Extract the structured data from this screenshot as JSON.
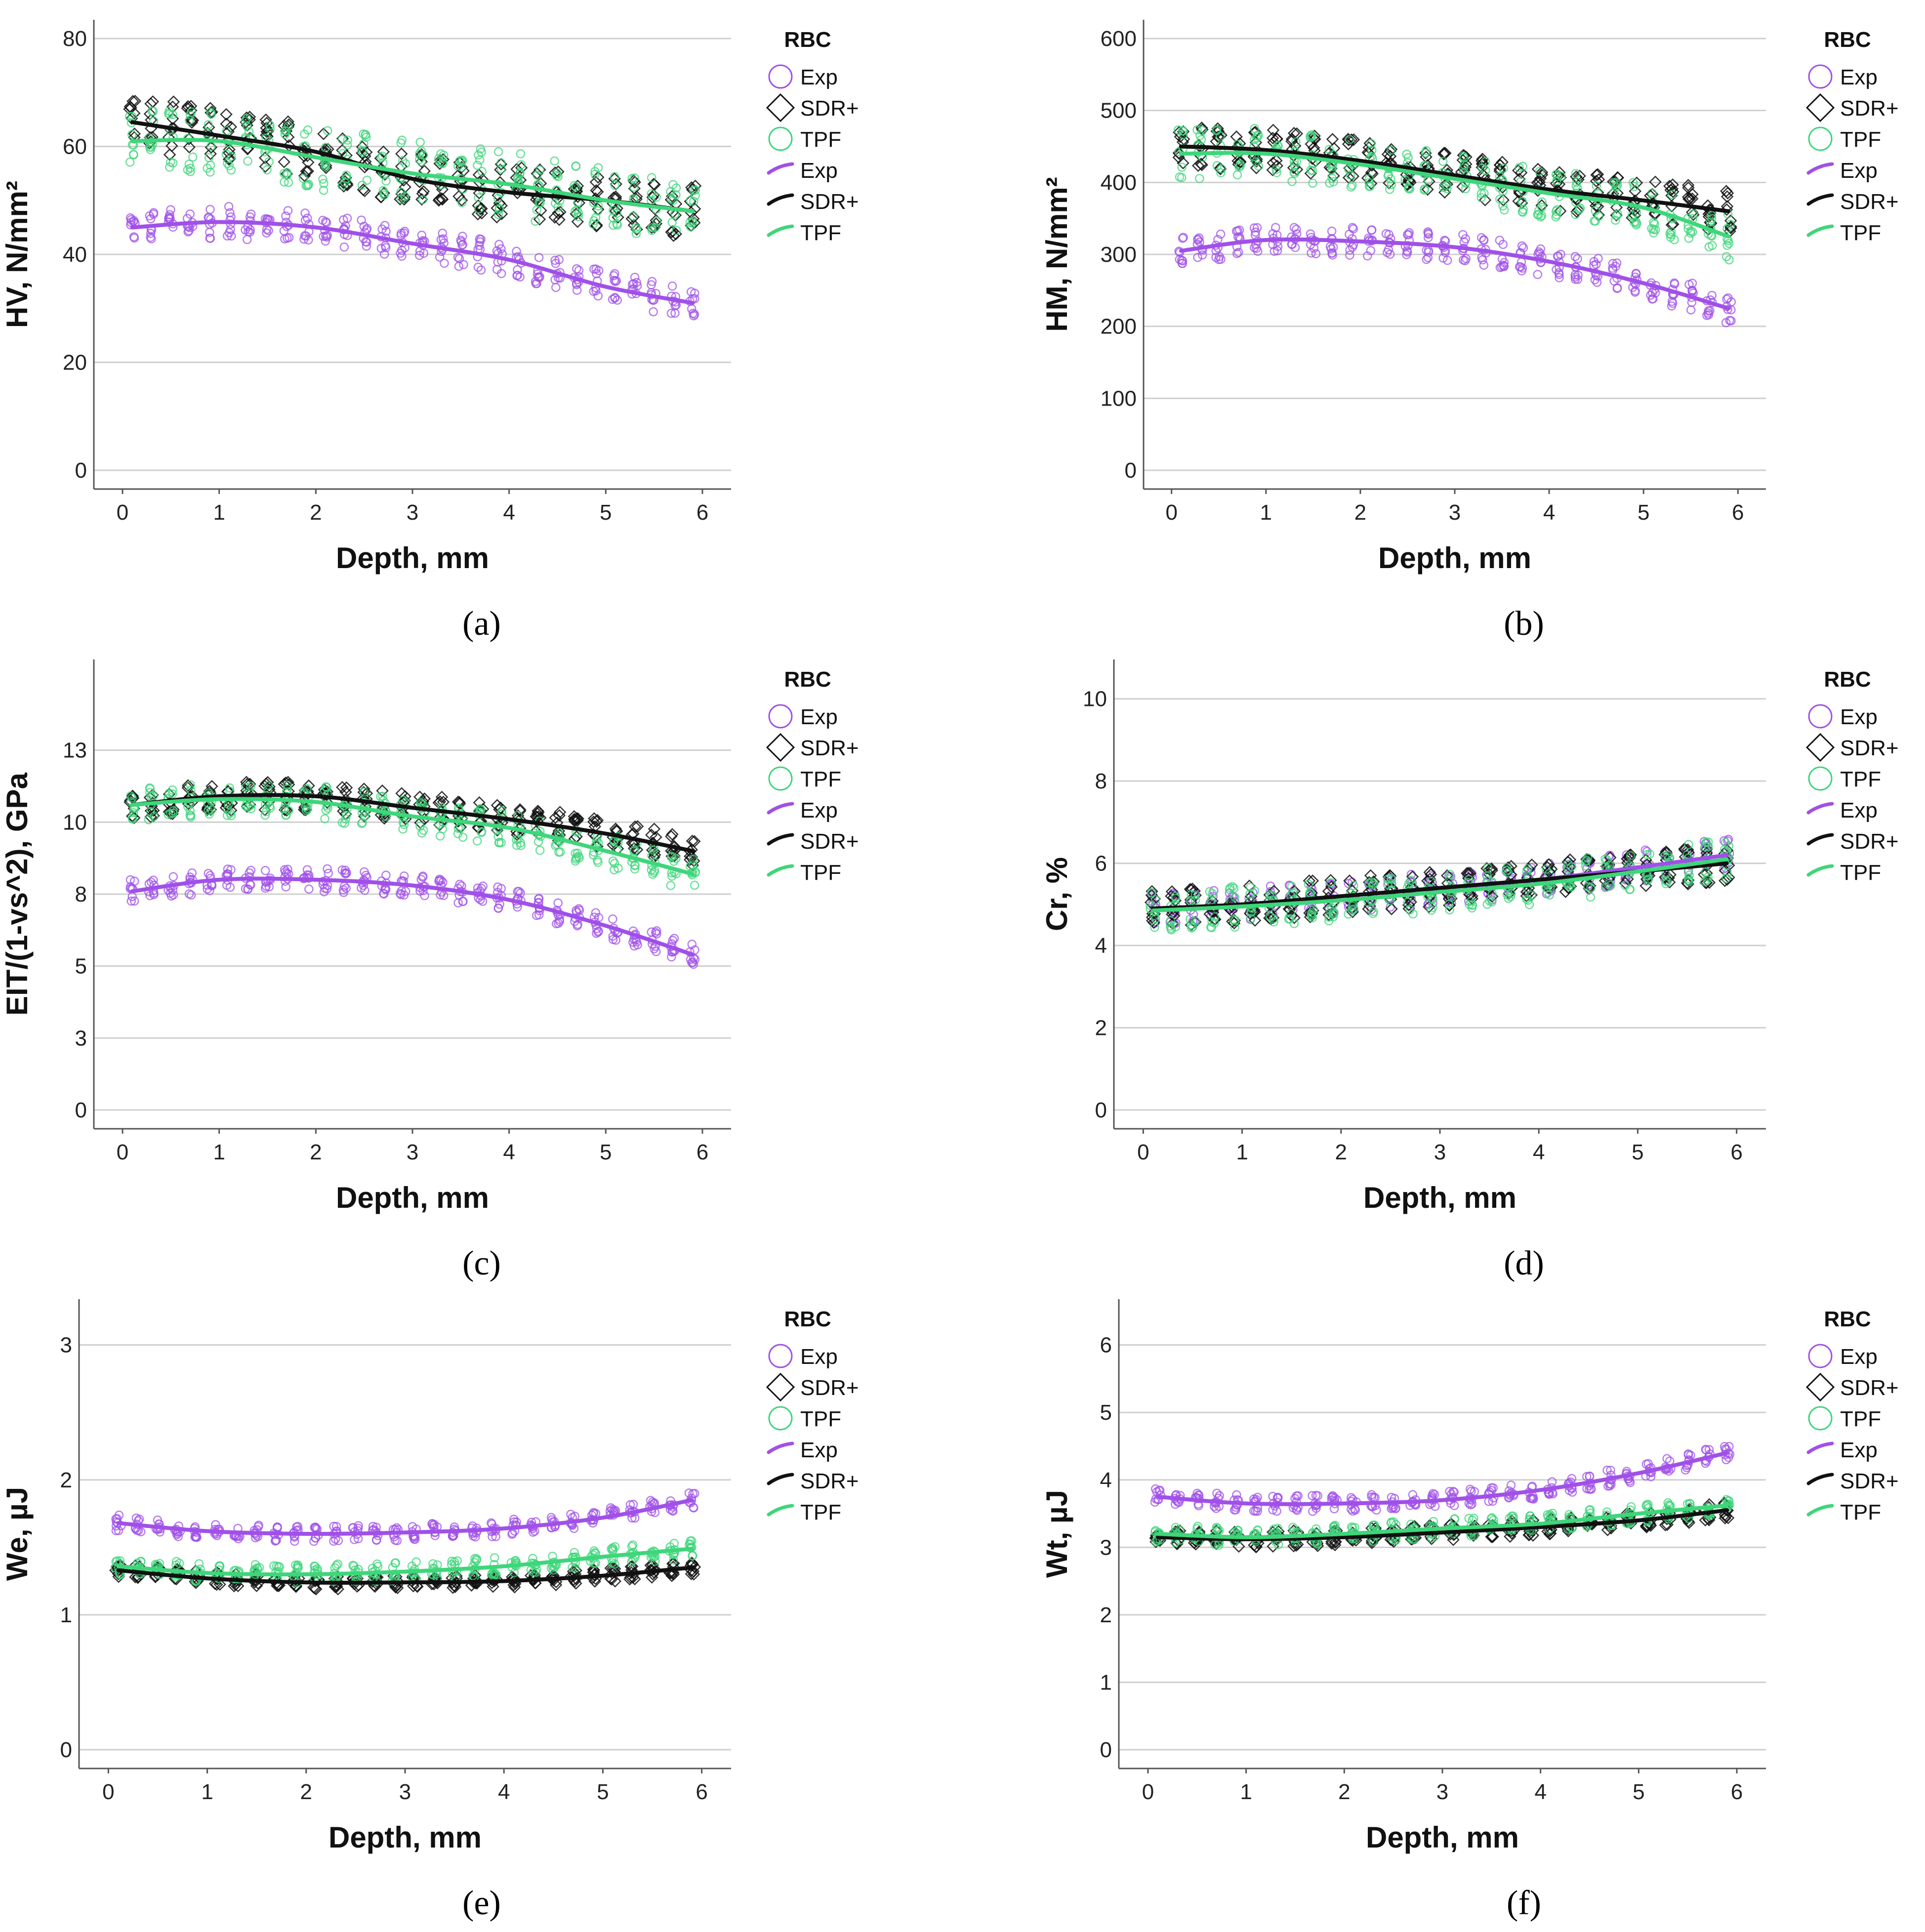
{
  "figure": {
    "legend_title": "RBC",
    "x_label": "Depth, mm",
    "colors": {
      "Exp": "#a050e8",
      "SDR+": "#111111",
      "TPF": "#3ed67a"
    }
  },
  "chart_data": [
    {
      "type": "scatter",
      "panel": "(a)",
      "ylabel": "HV, N/mm²",
      "xlabel": "Depth, mm",
      "xlim": [
        0,
        6
      ],
      "ylim": [
        0,
        80
      ],
      "xticks": [
        "0",
        "1",
        "2",
        "3",
        "4",
        "5",
        "6"
      ],
      "yticks": [
        "0",
        "20",
        "40",
        "60",
        "80"
      ],
      "legend": {
        "title": "RBC",
        "markers": [
          {
            "label": "Exp",
            "symbol": "circle"
          },
          {
            "label": "SDR+",
            "symbol": "diamond"
          },
          {
            "label": "TPF",
            "symbol": "circle"
          }
        ],
        "lines": [
          {
            "label": "Exp"
          },
          {
            "label": "SDR+"
          },
          {
            "label": "TPF"
          }
        ]
      },
      "series": [
        {
          "name": "Exp",
          "symbol": "circle",
          "fit": {
            "x": [
              0.1,
              1,
              2,
              3,
              4,
              5,
              5.9
            ],
            "y": [
              45,
              46,
              45,
              42,
              39,
              34,
              31
            ]
          },
          "spread": 3
        },
        {
          "name": "SDR+",
          "symbol": "diamond",
          "fit": {
            "x": [
              0.1,
              1,
              2,
              3,
              4,
              5,
              5.9
            ],
            "y": [
              64.5,
              62,
              59,
              54,
              51.5,
              50,
              48
            ]
          },
          "spread": 5
        },
        {
          "name": "TPF",
          "symbol": "circle",
          "fit": {
            "x": [
              0.1,
              1,
              2,
              3,
              4,
              5,
              5.9
            ],
            "y": [
              61,
              61,
              58,
              55,
              53,
              50,
              48
            ]
          },
          "spread": 6
        }
      ]
    },
    {
      "type": "scatter",
      "panel": "(b)",
      "ylabel": "HM, N/mm²",
      "xlabel": "Depth, mm",
      "xlim": [
        0,
        6
      ],
      "ylim": [
        0,
        600
      ],
      "xticks": [
        "0",
        "1",
        "2",
        "3",
        "4",
        "5",
        "6"
      ],
      "yticks": [
        "0",
        "100",
        "200",
        "300",
        "400",
        "500",
        "600"
      ],
      "legend": {
        "title": "RBC",
        "markers": [
          {
            "label": "Exp",
            "symbol": "circle"
          },
          {
            "label": "SDR+",
            "symbol": "diamond"
          },
          {
            "label": "TPF",
            "symbol": "circle"
          }
        ],
        "lines": [
          {
            "label": "Exp"
          },
          {
            "label": "SDR+"
          },
          {
            "label": "TPF"
          }
        ]
      },
      "series": [
        {
          "name": "Exp",
          "symbol": "circle",
          "fit": {
            "x": [
              0.1,
              1,
              2,
              3,
              4,
              5,
              5.9
            ],
            "y": [
              305,
              320,
              318,
              310,
              290,
              260,
              225
            ]
          },
          "spread": 20
        },
        {
          "name": "SDR+",
          "symbol": "diamond",
          "fit": {
            "x": [
              0.1,
              1,
              2,
              3,
              4,
              5,
              5.9
            ],
            "y": [
              450,
              445,
              430,
              410,
              390,
              375,
              360
            ]
          },
          "spread": 30
        },
        {
          "name": "TPF",
          "symbol": "circle",
          "fit": {
            "x": [
              0.1,
              1,
              2,
              3,
              4,
              5,
              5.9
            ],
            "y": [
              440,
              440,
              425,
              405,
              385,
              365,
              325
            ]
          },
          "spread": 35
        }
      ]
    },
    {
      "type": "scatter",
      "panel": "(c)",
      "ylabel": "EIT/(1-vs^2), GPa",
      "xlabel": "Depth, mm",
      "xlim": [
        0,
        6
      ],
      "ylim": [
        0,
        15
      ],
      "xticks": [
        "0",
        "1",
        "2",
        "3",
        "4",
        "5",
        "6"
      ],
      "yticks": [
        "0",
        "3",
        "5",
        "8",
        "10",
        "13"
      ],
      "ytick_values": [
        0,
        2.5,
        5,
        7.5,
        10,
        12.5
      ],
      "legend": {
        "title": "RBC",
        "markers": [
          {
            "label": "Exp",
            "symbol": "circle"
          },
          {
            "label": "SDR+",
            "symbol": "diamond"
          },
          {
            "label": "TPF",
            "symbol": "circle"
          }
        ],
        "lines": [
          {
            "label": "Exp"
          },
          {
            "label": "SDR+"
          },
          {
            "label": "TPF"
          }
        ]
      },
      "series": [
        {
          "name": "Exp",
          "symbol": "circle",
          "fit": {
            "x": [
              0.1,
              1,
              2,
              3,
              4,
              5,
              5.9
            ],
            "y": [
              7.6,
              8.0,
              8.0,
              7.8,
              7.3,
              6.4,
              5.4
            ]
          },
          "spread": 0.4
        },
        {
          "name": "SDR+",
          "symbol": "diamond",
          "fit": {
            "x": [
              0.1,
              1,
              2,
              3,
              4,
              5,
              5.9
            ],
            "y": [
              10.6,
              10.9,
              10.9,
              10.5,
              10.1,
              9.6,
              9.0
            ]
          },
          "spread": 0.5
        },
        {
          "name": "TPF",
          "symbol": "circle",
          "fit": {
            "x": [
              0.1,
              1,
              2,
              3,
              4,
              5,
              5.9
            ],
            "y": [
              10.6,
              10.8,
              10.7,
              10.2,
              9.8,
              9.0,
              8.2
            ]
          },
          "spread": 0.6
        }
      ]
    },
    {
      "type": "scatter",
      "panel": "(d)",
      "ylabel": "Cr, %",
      "xlabel": "Depth, mm",
      "xlim": [
        0,
        6
      ],
      "ylim": [
        0,
        10.5
      ],
      "xticks": [
        "0",
        "1",
        "2",
        "3",
        "4",
        "5",
        "6"
      ],
      "yticks": [
        "0",
        "2",
        "4",
        "6",
        "8",
        "10"
      ],
      "legend": {
        "title": "RBC",
        "markers": [
          {
            "label": "Exp",
            "symbol": "circle"
          },
          {
            "label": "SDR+",
            "symbol": "diamond"
          },
          {
            "label": "TPF",
            "symbol": "circle"
          }
        ],
        "lines": [
          {
            "label": "Exp"
          },
          {
            "label": "SDR+"
          },
          {
            "label": "TPF"
          }
        ]
      },
      "series": [
        {
          "name": "Exp",
          "symbol": "circle",
          "fit": {
            "x": [
              0.1,
              1,
              2,
              3,
              4,
              5,
              5.9
            ],
            "y": [
              4.9,
              5.0,
              5.2,
              5.4,
              5.6,
              5.9,
              6.2
            ]
          },
          "spread": 0.4
        },
        {
          "name": "SDR+",
          "symbol": "diamond",
          "fit": {
            "x": [
              0.1,
              1,
              2,
              3,
              4,
              5,
              5.9
            ],
            "y": [
              4.9,
              5.0,
              5.2,
              5.4,
              5.6,
              5.8,
              6.0
            ]
          },
          "spread": 0.45
        },
        {
          "name": "TPF",
          "symbol": "circle",
          "fit": {
            "x": [
              0.1,
              1,
              2,
              3,
              4,
              5,
              5.9
            ],
            "y": [
              4.85,
              4.95,
              5.1,
              5.3,
              5.5,
              5.8,
              6.1
            ]
          },
          "spread": 0.5
        }
      ]
    },
    {
      "type": "scatter",
      "panel": "(e)",
      "ylabel": "We, µJ",
      "xlabel": "Depth, mm",
      "xlim": [
        0,
        6
      ],
      "ylim": [
        0,
        3.2
      ],
      "xticks": [
        "0",
        "1",
        "2",
        "3",
        "4",
        "5",
        "6"
      ],
      "yticks": [
        "0",
        "1",
        "2",
        "3"
      ],
      "legend": {
        "title": "RBC",
        "markers": [
          {
            "label": "Exp",
            "symbol": "circle"
          },
          {
            "label": "SDR+",
            "symbol": "diamond"
          },
          {
            "label": "TPF",
            "symbol": "circle"
          }
        ],
        "lines": [
          {
            "label": "Exp"
          },
          {
            "label": "SDR+"
          },
          {
            "label": "TPF"
          }
        ]
      },
      "series": [
        {
          "name": "Exp",
          "symbol": "circle",
          "fit": {
            "x": [
              0.1,
              1,
              2,
              3,
              4,
              5,
              5.9
            ],
            "y": [
              1.68,
              1.62,
              1.6,
              1.61,
              1.64,
              1.72,
              1.85
            ]
          },
          "spread": 0.06
        },
        {
          "name": "SDR+",
          "symbol": "diamond",
          "fit": {
            "x": [
              0.1,
              1,
              2,
              3,
              4,
              5,
              5.9
            ],
            "y": [
              1.33,
              1.27,
              1.24,
              1.24,
              1.25,
              1.29,
              1.35
            ]
          },
          "spread": 0.05
        },
        {
          "name": "TPF",
          "symbol": "circle",
          "fit": {
            "x": [
              0.1,
              1,
              2,
              3,
              4,
              5,
              5.9
            ],
            "y": [
              1.36,
              1.31,
              1.3,
              1.32,
              1.36,
              1.43,
              1.49
            ]
          },
          "spread": 0.07
        }
      ]
    },
    {
      "type": "scatter",
      "panel": "(f)",
      "ylabel": "Wt, µJ",
      "xlabel": "Depth, mm",
      "xlim": [
        0,
        6
      ],
      "ylim": [
        0,
        6.4
      ],
      "xticks": [
        "0",
        "1",
        "2",
        "3",
        "4",
        "5",
        "6"
      ],
      "yticks": [
        "0",
        "1",
        "2",
        "3",
        "4",
        "5",
        "6"
      ],
      "legend": {
        "title": "RBC",
        "markers": [
          {
            "label": "Exp",
            "symbol": "circle"
          },
          {
            "label": "SDR+",
            "symbol": "diamond"
          },
          {
            "label": "TPF",
            "symbol": "circle"
          }
        ],
        "lines": [
          {
            "label": "Exp"
          },
          {
            "label": "SDR+"
          },
          {
            "label": "TPF"
          }
        ]
      },
      "series": [
        {
          "name": "Exp",
          "symbol": "circle",
          "fit": {
            "x": [
              0.1,
              1,
              2,
              3,
              4,
              5,
              5.9
            ],
            "y": [
              3.75,
              3.65,
              3.65,
              3.7,
              3.85,
              4.1,
              4.4
            ]
          },
          "spread": 0.12
        },
        {
          "name": "SDR+",
          "symbol": "diamond",
          "fit": {
            "x": [
              0.1,
              1,
              2,
              3,
              4,
              5,
              5.9
            ],
            "y": [
              3.15,
              3.12,
              3.15,
              3.22,
              3.3,
              3.4,
              3.55
            ]
          },
          "spread": 0.12
        },
        {
          "name": "TPF",
          "symbol": "circle",
          "fit": {
            "x": [
              0.1,
              1,
              2,
              3,
              4,
              5,
              5.9
            ],
            "y": [
              3.2,
              3.15,
              3.2,
              3.28,
              3.35,
              3.5,
              3.62
            ]
          },
          "spread": 0.14
        }
      ]
    }
  ]
}
